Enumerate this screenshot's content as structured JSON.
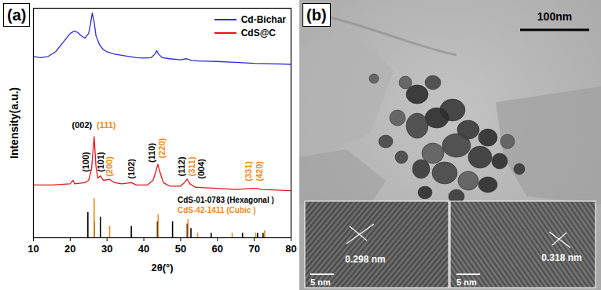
{
  "chart_data": {
    "type": "line",
    "panel_label": "(a)",
    "x_label": "2θ(°)",
    "y_label": "Intensity(a.u.)",
    "xlim": [
      10,
      80
    ],
    "xticks": [
      10,
      20,
      30,
      40,
      50,
      60,
      70,
      80
    ],
    "ylim": [
      0,
      100
    ],
    "tick_labels": "x",
    "legend": "top-right",
    "series": [
      {
        "name": "Cd-Bichar",
        "color": "#2b2be8",
        "x": [
          10,
          12,
          14,
          16,
          18,
          19,
          20,
          21,
          22,
          23,
          24,
          25,
          25.5,
          26,
          26.5,
          27,
          28,
          29,
          30,
          32,
          34,
          36,
          38,
          40,
          42,
          43,
          43.5,
          44,
          45,
          47,
          50,
          51.5,
          53,
          55,
          60,
          65,
          70,
          75,
          80
        ],
        "values": [
          79,
          78.5,
          79,
          81,
          85,
          87,
          89,
          90,
          89.5,
          88,
          87,
          89,
          93,
          98,
          94,
          88,
          84,
          82,
          81,
          80,
          79.5,
          79,
          78.5,
          78.3,
          78.5,
          80,
          81.5,
          80,
          78.5,
          78,
          77.5,
          78,
          77.3,
          77,
          76.8,
          76.4,
          76,
          75.8,
          75.6
        ]
      },
      {
        "name": "CdS@C",
        "color": "#e8141c",
        "x": [
          10,
          15,
          20,
          20.8,
          21.2,
          24,
          25,
          25.8,
          26.5,
          27,
          27.5,
          28.2,
          29,
          30.6,
          32,
          34,
          36.6,
          38,
          41,
          42.5,
          43.3,
          43.8,
          44.3,
          45.3,
          47,
          50,
          51,
          51.8,
          52.5,
          54,
          60,
          65,
          69.5,
          70.5,
          72,
          80
        ],
        "values": [
          23,
          23,
          23.5,
          25,
          23.5,
          24,
          25,
          30,
          44,
          31,
          26,
          27,
          25,
          25.5,
          24,
          23.5,
          24,
          23,
          23,
          25,
          29,
          32,
          29,
          24,
          22.5,
          22.5,
          24,
          25.5,
          23.5,
          22,
          21.5,
          21,
          21.5,
          21.5,
          21,
          20.5
        ]
      }
    ],
    "references": [
      {
        "name": "CdS-01-0783 (Hexagonal )",
        "color": "#000000",
        "type": "stick",
        "x": [
          24.8,
          26.5,
          28.2,
          36.6,
          43.7,
          47.8,
          51.8,
          52.8,
          58.3,
          66.8,
          70.9,
          72.4
        ],
        "values": [
          11,
          7,
          9,
          5,
          7,
          7,
          6,
          4,
          2,
          2,
          2,
          2
        ]
      },
      {
        "name": "CdS-42-1411 (Cubic )",
        "color": "#f08a1c",
        "type": "stick",
        "x": [
          26.5,
          30.7,
          43.9,
          52.0,
          54.6,
          64.0,
          70.4,
          72.8
        ],
        "values": [
          17,
          5,
          10,
          8,
          2,
          2,
          2,
          3
        ]
      }
    ],
    "annotations": [
      {
        "text": "(002)",
        "x": 23.2,
        "y": 49,
        "color": "#000000"
      },
      {
        "text": "(111)",
        "x": 29.8,
        "y": 49,
        "color": "#f08a1c"
      },
      {
        "text": "(100)",
        "x": 24.3,
        "y": 33,
        "color": "#000000",
        "orientation": "vertical"
      },
      {
        "text": "(101)",
        "x": 28.3,
        "y": 33,
        "color": "#000000",
        "orientation": "vertical"
      },
      {
        "text": "(200)",
        "x": 30.6,
        "y": 31,
        "color": "#f08a1c",
        "orientation": "vertical"
      },
      {
        "text": "(102)",
        "x": 36.6,
        "y": 30,
        "color": "#000000",
        "orientation": "vertical"
      },
      {
        "text": "(110)",
        "x": 42.3,
        "y": 37,
        "color": "#000000",
        "orientation": "vertical"
      },
      {
        "text": "(220)",
        "x": 45.0,
        "y": 39,
        "color": "#f08a1c",
        "orientation": "vertical"
      },
      {
        "text": "(112)",
        "x": 50.3,
        "y": 31,
        "color": "#000000",
        "orientation": "vertical"
      },
      {
        "text": "(311)",
        "x": 53.0,
        "y": 31,
        "color": "#f08a1c",
        "orientation": "vertical"
      },
      {
        "text": "(004)",
        "x": 55.6,
        "y": 30,
        "color": "#000000",
        "orientation": "vertical"
      },
      {
        "text": "(331)",
        "x": 68.5,
        "y": 29,
        "color": "#f08a1c",
        "orientation": "vertical"
      },
      {
        "text": "(420)",
        "x": 71.5,
        "y": 29,
        "color": "#f08a1c",
        "orientation": "vertical"
      }
    ]
  },
  "image": {
    "panel_label": "(b)",
    "scale_bar": "100nm",
    "insets": [
      {
        "scale_bar": "5 nm",
        "lattice_spacing": "0.298 nm"
      },
      {
        "scale_bar": "5 nm",
        "lattice_spacing": "0.318 nm"
      }
    ]
  }
}
